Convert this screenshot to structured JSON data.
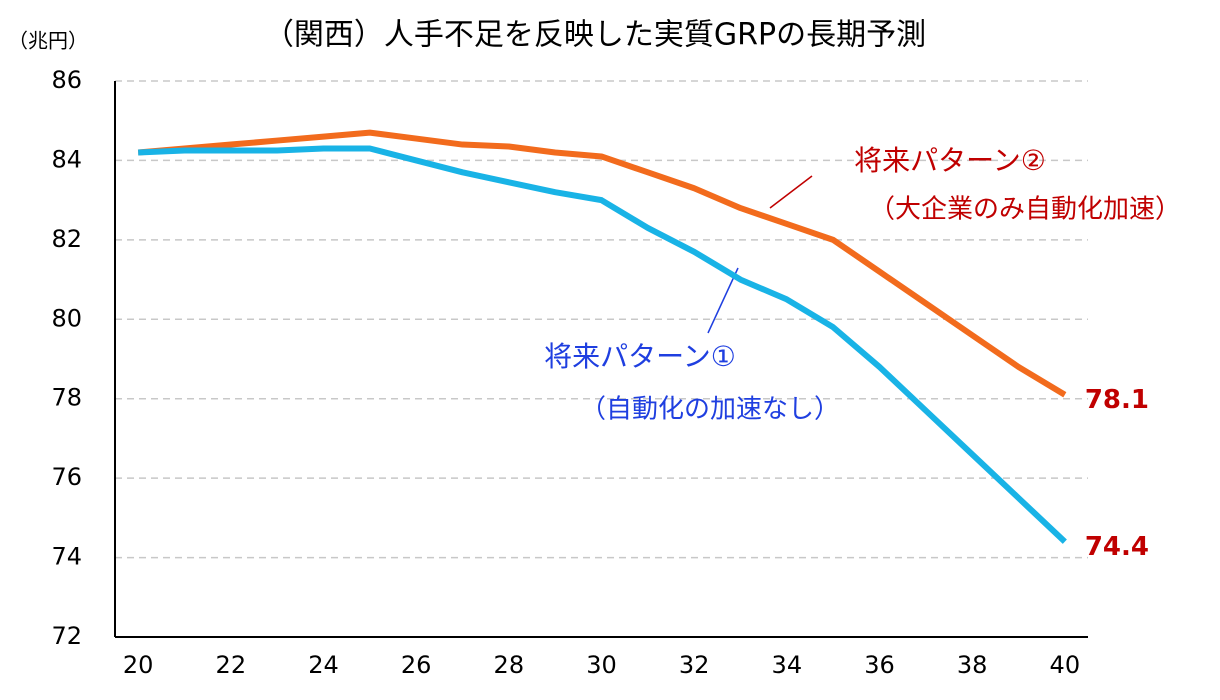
{
  "chart_data": {
    "type": "line",
    "title": "（関西）人手不足を反映した実質GRPの長期予測",
    "y_unit": "（兆円）",
    "x": [
      20,
      21,
      22,
      23,
      24,
      25,
      26,
      27,
      28,
      29,
      30,
      31,
      32,
      33,
      34,
      35,
      36,
      37,
      38,
      39,
      40
    ],
    "series": [
      {
        "name": "将来パターン②",
        "note": "（大企業のみ自動化加速）",
        "color": "#f26b1d",
        "label_color": "#c00000",
        "values": [
          84.2,
          84.3,
          84.4,
          84.5,
          84.6,
          84.7,
          84.55,
          84.4,
          84.35,
          84.2,
          84.1,
          83.7,
          83.3,
          82.8,
          82.4,
          82.0,
          81.2,
          80.4,
          79.6,
          78.8,
          78.1
        ]
      },
      {
        "name": "将来パターン①",
        "note": "（自動化の加速なし）",
        "color": "#19b3e6",
        "label_color": "#1f3fe0",
        "values": [
          84.2,
          84.25,
          84.25,
          84.25,
          84.3,
          84.3,
          84.0,
          83.7,
          83.45,
          83.2,
          83.0,
          82.3,
          81.7,
          81.0,
          80.5,
          79.8,
          78.8,
          77.7,
          76.6,
          75.5,
          74.4
        ]
      }
    ],
    "value_label_color": "#c00000",
    "xlim": [
      19.5,
      40.5
    ],
    "xticks": [
      20,
      22,
      24,
      26,
      28,
      30,
      32,
      34,
      36,
      38,
      40
    ],
    "ylim": [
      72,
      86
    ],
    "yticks": [
      72,
      74,
      76,
      78,
      80,
      82,
      84,
      86
    ],
    "grid": true
  }
}
